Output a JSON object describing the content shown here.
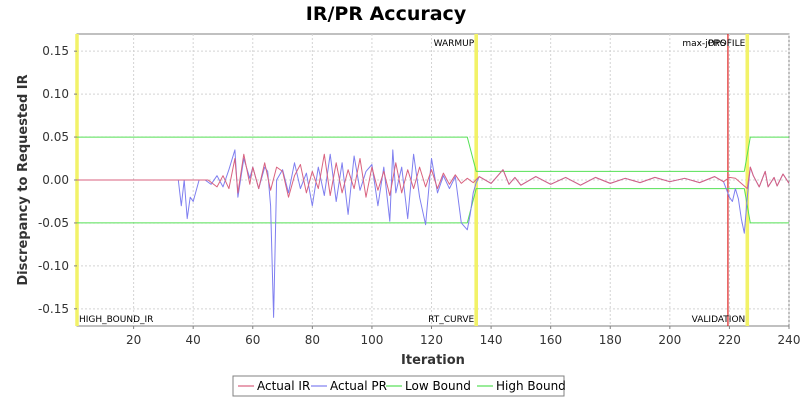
{
  "chart_data": {
    "type": "line",
    "title": "IR/PR Accuracy",
    "xlabel": "Iteration",
    "ylabel": "Discrepancy to Requested IR",
    "xlim": [
      1,
      240
    ],
    "ylim": [
      -0.17,
      0.17
    ],
    "xticks": [
      20,
      40,
      60,
      80,
      100,
      120,
      140,
      160,
      180,
      200,
      220,
      240
    ],
    "yticks": [
      -0.15,
      -0.1,
      -0.05,
      0.0,
      0.05,
      0.1,
      0.15
    ],
    "ytick_labels": [
      "-0.15",
      "-0.10",
      "-0.05",
      "0.00",
      "0.05",
      "0.10",
      "0.15"
    ],
    "grid": true,
    "legend_position": "bottom",
    "colors": {
      "actual_ir": "#d9627f",
      "actual_pr": "#7f7ff0",
      "low_bound": "#55e055",
      "high_bound": "#55e055",
      "phase_marker": "#f2f268",
      "maxjops_marker": "#dd2222"
    },
    "series": [
      {
        "name": "Actual IR",
        "color": "#d9627f",
        "x": [
          1,
          35,
          40,
          45,
          48,
          50,
          52,
          54,
          55,
          57,
          59,
          60,
          62,
          64,
          66,
          68,
          70,
          72,
          74,
          76,
          78,
          80,
          82,
          84,
          86,
          88,
          90,
          92,
          94,
          96,
          98,
          100,
          102,
          104,
          106,
          108,
          110,
          112,
          114,
          116,
          118,
          120,
          122,
          124,
          126,
          128,
          130,
          132,
          134,
          136,
          140,
          144,
          146,
          148,
          150,
          155,
          160,
          165,
          170,
          175,
          180,
          185,
          190,
          195,
          200,
          205,
          210,
          215,
          218,
          220,
          222,
          224,
          226,
          227,
          228,
          230,
          232,
          233,
          235,
          236,
          238,
          240
        ],
        "values": [
          0,
          0,
          0,
          0,
          -0.008,
          0.005,
          -0.01,
          0.025,
          -0.015,
          0.03,
          -0.005,
          0.015,
          -0.01,
          0.02,
          -0.012,
          0.015,
          0.01,
          -0.02,
          0.005,
          0.018,
          -0.015,
          0.01,
          -0.01,
          0.03,
          -0.018,
          0.02,
          -0.015,
          0.012,
          -0.01,
          0.025,
          -0.02,
          0.015,
          -0.012,
          0.01,
          -0.018,
          0.02,
          -0.015,
          0.012,
          -0.01,
          0.015,
          -0.008,
          0.012,
          -0.01,
          0.008,
          -0.005,
          0.006,
          -0.004,
          0.002,
          -0.003,
          0.004,
          -0.004,
          0.012,
          -0.005,
          0.003,
          -0.006,
          0.004,
          -0.005,
          0.003,
          -0.006,
          0.003,
          -0.004,
          0.002,
          -0.003,
          0.003,
          -0.002,
          0.002,
          -0.003,
          0.004,
          -0.002,
          0.003,
          0.002,
          -0.004,
          -0.01,
          0.015,
          0.005,
          -0.008,
          0.01,
          -0.008,
          0.003,
          -0.007,
          0.007,
          -0.004
        ]
      },
      {
        "name": "Actual PR",
        "color": "#7f7ff0",
        "x": [
          1,
          35,
          36,
          37,
          38,
          39,
          40,
          42,
          44,
          46,
          48,
          50,
          52,
          54,
          55,
          57,
          59,
          60,
          62,
          64,
          65,
          66,
          67,
          68,
          70,
          72,
          74,
          76,
          78,
          80,
          82,
          84,
          86,
          88,
          90,
          92,
          94,
          96,
          98,
          100,
          102,
          104,
          106,
          107,
          108,
          110,
          112,
          114,
          116,
          118,
          120,
          122,
          124,
          126,
          128,
          130,
          132,
          133,
          134,
          135,
          136,
          140,
          144,
          146,
          148,
          150,
          155,
          160,
          165,
          170,
          175,
          180,
          185,
          190,
          195,
          200,
          205,
          210,
          215,
          218,
          220,
          221,
          222,
          223,
          224,
          225,
          226,
          227,
          228,
          230,
          232,
          233,
          235,
          236,
          238,
          240
        ],
        "values": [
          0,
          0,
          -0.03,
          0.0,
          -0.045,
          -0.02,
          -0.025,
          0.0,
          0.0,
          -0.005,
          0.005,
          -0.008,
          0.012,
          0.035,
          -0.02,
          0.025,
          0.002,
          0.015,
          -0.01,
          0.015,
          0.01,
          -0.03,
          -0.16,
          0.0,
          0.012,
          -0.015,
          0.02,
          -0.01,
          0.008,
          -0.03,
          0.015,
          -0.018,
          0.03,
          -0.025,
          0.02,
          -0.04,
          0.028,
          -0.012,
          0.01,
          0.018,
          -0.03,
          0.015,
          -0.048,
          0.035,
          -0.015,
          0.015,
          -0.045,
          0.03,
          -0.02,
          -0.052,
          0.025,
          -0.015,
          0.005,
          -0.01,
          0.004,
          -0.05,
          -0.058,
          -0.04,
          -0.015,
          -0.003,
          0.004,
          -0.004,
          0.012,
          -0.005,
          0.003,
          -0.006,
          0.004,
          -0.005,
          0.003,
          -0.006,
          0.003,
          -0.004,
          0.002,
          -0.003,
          0.003,
          -0.002,
          0.002,
          -0.003,
          0.004,
          -0.002,
          -0.02,
          -0.025,
          -0.01,
          -0.022,
          -0.045,
          -0.062,
          -0.02,
          0.015,
          0.005,
          -0.008,
          0.01,
          -0.008,
          0.003,
          -0.007,
          0.007,
          -0.004
        ]
      },
      {
        "name": "Low Bound",
        "color": "#55e055",
        "x": [
          1,
          132,
          135,
          225,
          227,
          240
        ],
        "values": [
          -0.05,
          -0.05,
          -0.01,
          -0.01,
          -0.05,
          -0.05
        ]
      },
      {
        "name": "High Bound",
        "color": "#55e055",
        "x": [
          1,
          132,
          135,
          225,
          227,
          240
        ],
        "values": [
          0.05,
          0.05,
          0.01,
          0.01,
          0.05,
          0.05
        ]
      }
    ],
    "phase_markers": [
      {
        "x": 135,
        "label": "WARMUP",
        "label_pos": "top",
        "color": "#f2f268"
      },
      {
        "x": 135,
        "label": "RT_CURVE",
        "label_pos": "bottom",
        "color": "#f2f268"
      },
      {
        "x": 219.5,
        "label": "max-jOPS",
        "label_pos": "top",
        "color": "#dd2222"
      },
      {
        "x": 226,
        "label": "VALIDATION",
        "label_pos": "bottom",
        "color": "#f2f268"
      },
      {
        "x": 226,
        "label": "PROFILE",
        "label_pos": "top",
        "color": "#f2f268"
      },
      {
        "x": 1,
        "label": "HIGH_BOUND_IR",
        "label_pos": "bottom",
        "color": "#f2f268"
      }
    ]
  }
}
